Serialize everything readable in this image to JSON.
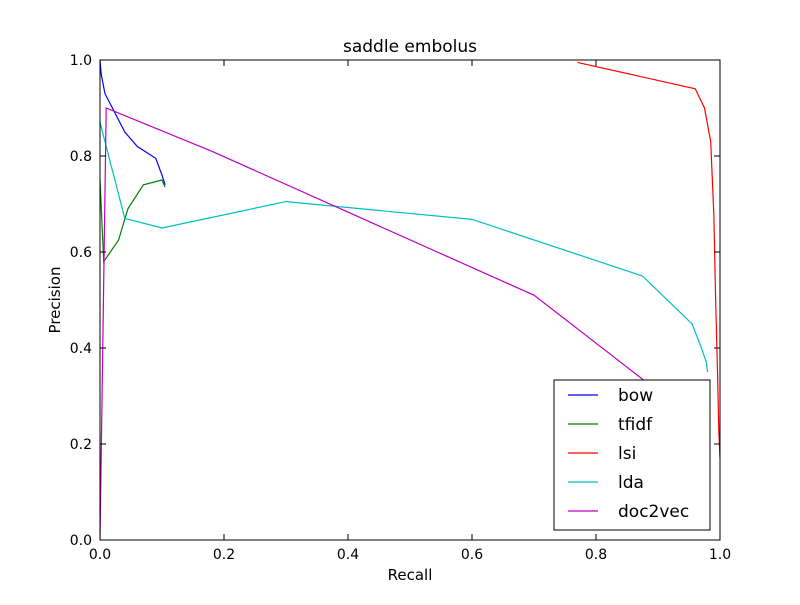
{
  "chart_data": {
    "type": "line",
    "title": "saddle embolus",
    "xlabel": "Recall",
    "ylabel": "Precision",
    "xlim": [
      0.0,
      1.0
    ],
    "ylim": [
      0.0,
      1.0
    ],
    "grid": false,
    "legend_position": "lower-right",
    "x_ticks": [
      "0.0",
      "0.2",
      "0.4",
      "0.6",
      "0.8",
      "1.0"
    ],
    "y_ticks": [
      "0.0",
      "0.2",
      "0.4",
      "0.6",
      "0.8",
      "1.0"
    ],
    "series": [
      {
        "name": "bow",
        "color": "#0000ff",
        "x": [
          0.0,
          0.002,
          0.008,
          0.02,
          0.04,
          0.06,
          0.09,
          0.1,
          0.105
        ],
        "y": [
          1.0,
          0.97,
          0.93,
          0.9,
          0.85,
          0.82,
          0.795,
          0.76,
          0.74
        ]
      },
      {
        "name": "tfidf",
        "color": "#008000",
        "x": [
          0.0,
          0.006,
          0.03,
          0.045,
          0.07,
          0.1,
          0.105
        ],
        "y": [
          0.75,
          0.58,
          0.625,
          0.69,
          0.74,
          0.75,
          0.735
        ]
      },
      {
        "name": "lsi",
        "color": "#ff0000",
        "x": [
          0.77,
          0.96,
          0.975,
          0.985,
          0.99,
          0.993,
          0.996,
          0.998,
          1.0
        ],
        "y": [
          0.995,
          0.94,
          0.9,
          0.83,
          0.68,
          0.5,
          0.35,
          0.23,
          0.17
        ]
      },
      {
        "name": "lda",
        "color": "#00bfbf",
        "x": [
          0.0,
          0.04,
          0.1,
          0.3,
          0.6,
          0.875,
          0.955,
          0.97,
          0.978,
          0.98
        ],
        "y": [
          0.87,
          0.67,
          0.65,
          0.705,
          0.668,
          0.55,
          0.45,
          0.4,
          0.37,
          0.35
        ]
      },
      {
        "name": "doc2vec",
        "color": "#bf00bf",
        "x": [
          0.0,
          0.01,
          0.18,
          0.7,
          0.88
        ],
        "y": [
          0.0,
          0.9,
          0.81,
          0.51,
          0.33
        ]
      }
    ]
  }
}
